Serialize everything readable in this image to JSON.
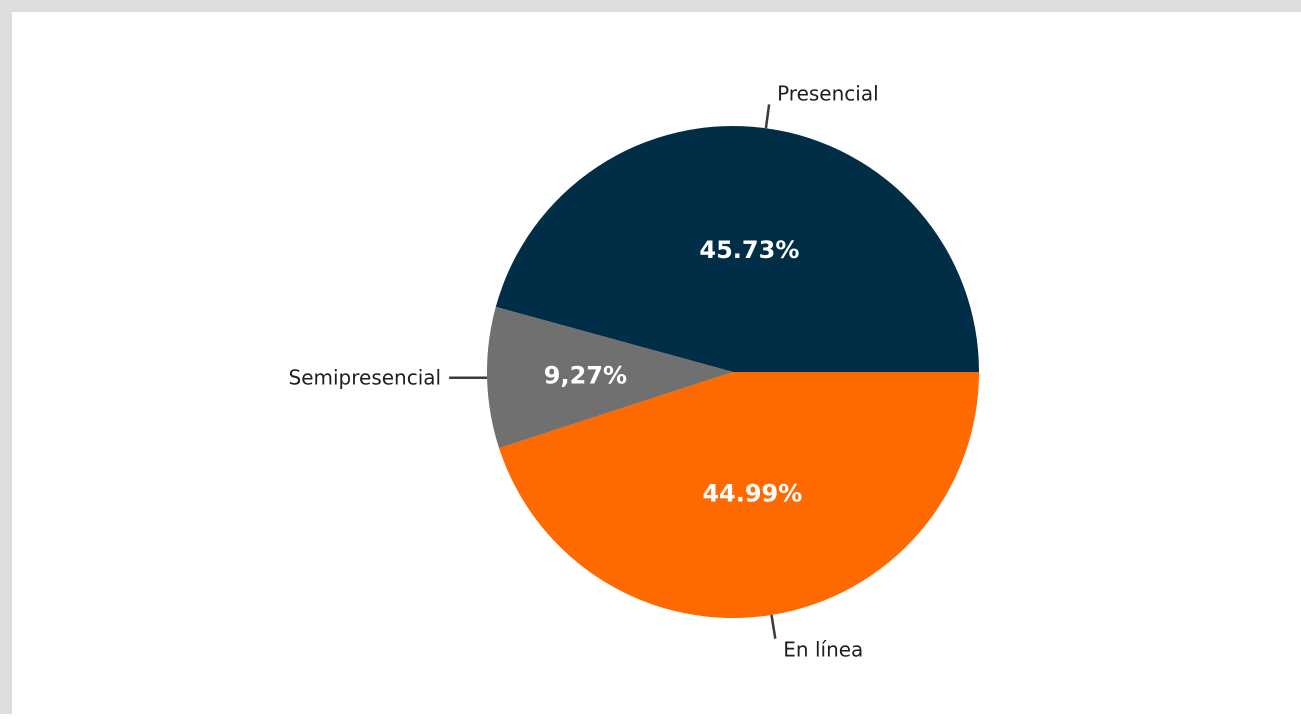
{
  "chart_data": {
    "type": "pie",
    "title": "",
    "slices": [
      {
        "name": "Presencial",
        "value": 45.73,
        "label": "45.73%",
        "color": "#002e47"
      },
      {
        "name": "En línea",
        "value": 44.99,
        "label": "44.99%",
        "color": "#ff6a00"
      },
      {
        "name": "Semipresencial",
        "value": 9.27,
        "label": "9,27%",
        "color": "#707070"
      }
    ],
    "start_angle_deg": 0,
    "direction": "clockwise",
    "legend": "none",
    "label_placement": "outside-with-leader-lines"
  },
  "colors": {
    "background": "#ffffff",
    "frame_border": "#dedede",
    "leader_line": "#3a3a3a",
    "category_text": "#1e1e1e",
    "value_text": "#ffffff"
  }
}
